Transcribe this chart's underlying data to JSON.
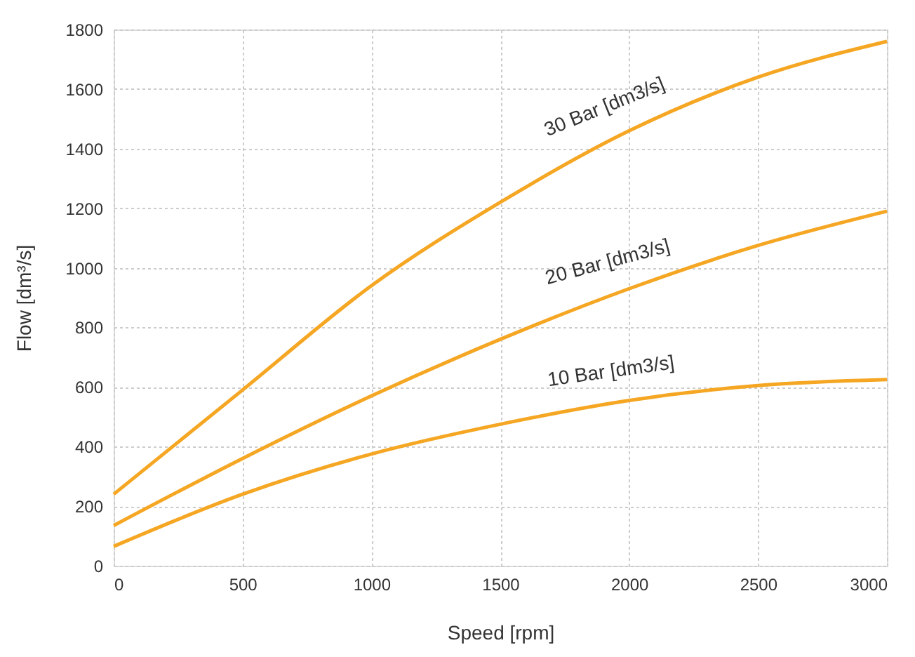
{
  "chart_data": {
    "type": "line",
    "xlabel": "Speed [rpm]",
    "ylabel": "Flow [dm³/s]",
    "x": [
      0,
      500,
      1000,
      1500,
      2000,
      2500,
      3000
    ],
    "series": [
      {
        "name": "30 Bar [dm3/s]",
        "color": "#f5a623",
        "values": [
          240,
          590,
          940,
          1220,
          1460,
          1640,
          1760
        ]
      },
      {
        "name": "20 Bar [dm3/s]",
        "color": "#f5a623",
        "values": [
          135,
          360,
          570,
          760,
          930,
          1075,
          1190
        ]
      },
      {
        "name": "10 Bar [dm3/s]",
        "color": "#f5a623",
        "values": [
          65,
          240,
          375,
          475,
          555,
          605,
          625
        ]
      }
    ],
    "xlim": [
      0,
      3000
    ],
    "xticks": [
      0,
      500,
      1000,
      1500,
      2000,
      2500,
      3000
    ],
    "ylim": [
      0,
      1800
    ],
    "yticks": [
      0,
      200,
      400,
      600,
      800,
      1000,
      1200,
      1400,
      1600,
      1800
    ],
    "grid": true,
    "legend": false,
    "marker": "none",
    "line_style": "solid"
  }
}
